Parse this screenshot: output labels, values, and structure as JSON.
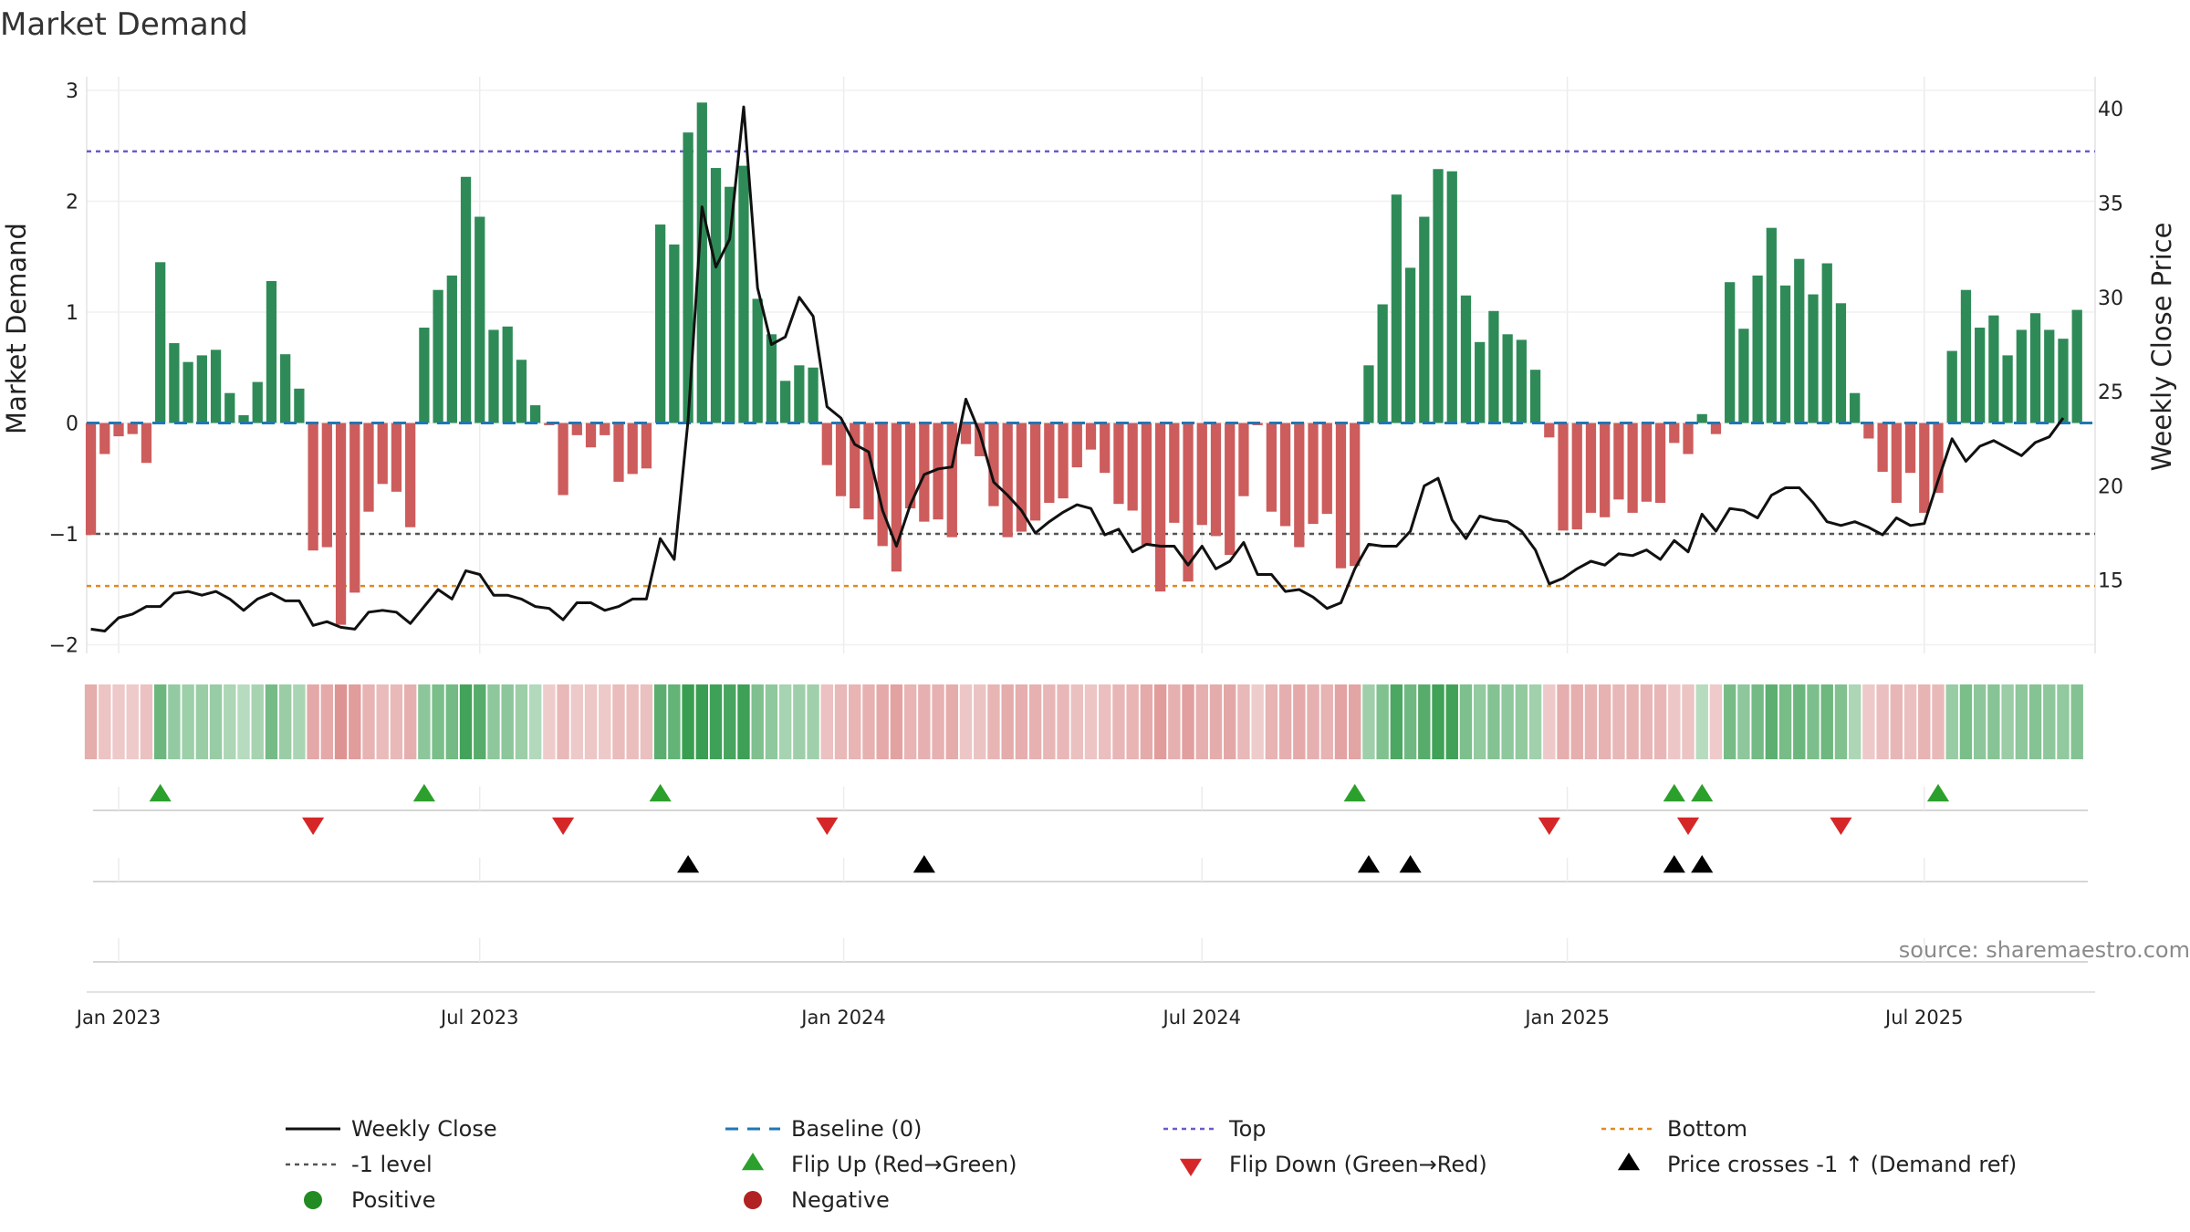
{
  "chart_data": {
    "type": "bar+line",
    "title": "Market Demand",
    "ylabel_left": "Market Demand",
    "ylabel_right": "Weekly Close Price",
    "ylim_left": [
      -2.2,
      3.0
    ],
    "ylim_right": [
      10.5,
      40.5
    ],
    "left_ticks": [
      {
        "v": 3,
        "t": "3"
      },
      {
        "v": 2,
        "t": "2"
      },
      {
        "v": 1,
        "t": "1"
      },
      {
        "v": 0,
        "t": "0"
      },
      {
        "v": -1,
        "t": "−1"
      },
      {
        "v": -2,
        "t": "−2"
      }
    ],
    "right_ticks": [
      {
        "v": 40,
        "t": "40"
      },
      {
        "v": 35,
        "t": "35"
      },
      {
        "v": 30,
        "t": "30"
      },
      {
        "v": 25,
        "t": "25"
      },
      {
        "v": 20,
        "t": "20"
      },
      {
        "v": 15,
        "t": "15"
      }
    ],
    "x_ticks": [
      {
        "week": 2,
        "t": "Jan 2023"
      },
      {
        "week": 28,
        "t": "Jul 2023"
      },
      {
        "week": 54.2,
        "t": "Jan 2024"
      },
      {
        "week": 80,
        "t": "Jul 2024"
      },
      {
        "week": 106.3,
        "t": "Jan 2025"
      },
      {
        "week": 132,
        "t": "Jul 2025"
      }
    ],
    "x_range_weeks": [
      -0.3,
      144.3
    ],
    "reference_lines": {
      "baseline": 0,
      "top": 2.45,
      "bottom": -1.47,
      "minus_one": -1
    },
    "demand": [
      -1.01,
      -0.28,
      -0.12,
      -0.1,
      -0.36,
      1.45,
      0.72,
      0.55,
      0.61,
      0.66,
      0.27,
      0.07,
      0.37,
      1.28,
      0.62,
      0.31,
      -1.15,
      -1.12,
      -1.82,
      -1.53,
      -0.8,
      -0.55,
      -0.62,
      -0.94,
      0.86,
      1.2,
      1.33,
      2.22,
      1.86,
      0.84,
      0.87,
      0.57,
      0.16,
      -0.02,
      -0.65,
      -0.11,
      -0.22,
      -0.11,
      -0.53,
      -0.46,
      -0.41,
      1.79,
      1.61,
      2.62,
      2.89,
      2.3,
      2.13,
      2.32,
      1.12,
      0.8,
      0.38,
      0.52,
      0.5,
      -0.38,
      -0.66,
      -0.77,
      -0.87,
      -1.11,
      -1.34,
      -0.77,
      -0.89,
      -0.87,
      -1.03,
      -0.19,
      -0.3,
      -0.75,
      -1.03,
      -0.98,
      -0.88,
      -0.72,
      -0.68,
      -0.4,
      -0.24,
      -0.45,
      -0.73,
      -0.79,
      -1.1,
      -1.52,
      -0.9,
      -1.43,
      -0.92,
      -1.02,
      -1.19,
      -0.66,
      -0.02,
      -0.8,
      -0.93,
      -1.12,
      -0.91,
      -0.82,
      -1.31,
      -1.29,
      0.52,
      1.07,
      2.06,
      1.4,
      1.86,
      2.29,
      2.27,
      1.15,
      0.73,
      1.01,
      0.8,
      0.75,
      0.48,
      -0.13,
      -0.97,
      -0.96,
      -0.81,
      -0.85,
      -0.69,
      -0.81,
      -0.71,
      -0.72,
      -0.18,
      -0.28,
      0.08,
      -0.1,
      1.27,
      0.85,
      1.33,
      1.76,
      1.24,
      1.48,
      1.16,
      1.44,
      1.08,
      0.27,
      -0.14,
      -0.44,
      -0.72,
      -0.45,
      -0.81,
      -0.63,
      0.65,
      1.2,
      0.86,
      0.97,
      0.61,
      0.84,
      0.99,
      0.84,
      0.76,
      1.02
    ],
    "weekly_close": [
      12.4,
      12.3,
      13.0,
      13.2,
      13.6,
      13.6,
      14.3,
      14.4,
      14.2,
      14.4,
      14.0,
      13.4,
      14.0,
      14.3,
      13.9,
      13.9,
      12.6,
      12.8,
      12.5,
      12.4,
      13.3,
      13.4,
      13.3,
      12.7,
      13.6,
      14.5,
      14.0,
      15.5,
      15.3,
      14.2,
      14.2,
      14.0,
      13.6,
      13.5,
      12.9,
      13.8,
      13.8,
      13.4,
      13.6,
      14.0,
      14.0,
      17.2,
      16.1,
      23.5,
      34.8,
      31.6,
      33.1,
      40.1,
      30.5,
      27.5,
      27.9,
      30.0,
      29.0,
      24.2,
      23.6,
      22.2,
      21.8,
      18.7,
      16.8,
      19.0,
      20.6,
      20.9,
      21.0,
      24.6,
      22.8,
      20.2,
      19.5,
      18.7,
      17.5,
      18.1,
      18.6,
      19.0,
      18.8,
      17.4,
      17.7,
      16.5,
      16.9,
      16.8,
      16.8,
      15.8,
      16.8,
      15.6,
      16.0,
      17.0,
      15.3,
      15.3,
      14.4,
      14.5,
      14.1,
      13.5,
      13.8,
      15.6,
      16.9,
      16.8,
      16.8,
      17.6,
      20.0,
      20.4,
      18.2,
      17.2,
      18.4,
      18.2,
      18.1,
      17.6,
      16.6,
      14.8,
      15.1,
      15.6,
      16.0,
      15.8,
      16.4,
      16.3,
      16.6,
      16.1,
      17.1,
      16.5,
      18.5,
      17.6,
      18.8,
      18.7,
      18.3,
      19.5,
      19.9,
      19.9,
      19.1,
      18.1,
      17.9,
      18.1,
      17.8,
      17.4,
      18.3,
      17.9,
      18.0,
      20.3,
      22.5,
      21.3,
      22.1,
      22.4,
      22.0,
      21.6,
      22.3,
      22.6,
      23.6
    ],
    "flip_up_weeks": [
      5,
      24,
      41,
      91,
      114,
      116,
      133
    ],
    "flip_down_weeks": [
      16,
      34,
      53,
      105,
      115,
      126
    ],
    "price_cross_weeks": [
      43,
      60,
      92,
      95,
      114,
      116
    ],
    "colors": {
      "positive_bar": "#2e8b57",
      "negative_bar": "#cd5c5c",
      "close_line": "#111111",
      "baseline": "#1f77b4",
      "top": "#6a5acd",
      "bottom": "#e08a1e",
      "minus_one": "#555555",
      "flip_up": "#2ca02c",
      "flip_down": "#d62728",
      "price_cross": "#000000",
      "positive_dot": "#228b22",
      "negative_dot": "#b22222"
    },
    "legend": [
      {
        "key": "close",
        "label": "Weekly Close"
      },
      {
        "key": "baseline",
        "label": "Baseline (0)"
      },
      {
        "key": "top",
        "label": "Top"
      },
      {
        "key": "bottom",
        "label": "Bottom"
      },
      {
        "key": "minus_one",
        "label": "-1 level"
      },
      {
        "key": "flip_up",
        "label": "Flip Up (Red→Green)"
      },
      {
        "key": "flip_down",
        "label": "Flip Down (Green→Red)"
      },
      {
        "key": "price_cross",
        "label": "Price crosses -1 ↑ (Demand ref)"
      },
      {
        "key": "positive",
        "label": "Positive"
      },
      {
        "key": "negative",
        "label": "Negative"
      }
    ],
    "source": "source: sharemaestro.com"
  }
}
